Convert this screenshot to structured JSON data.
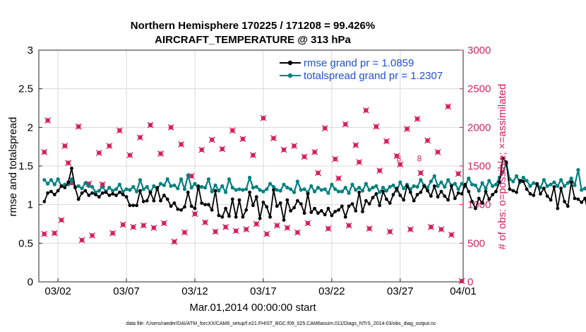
{
  "chart_data": {
    "type": "line",
    "title_line1": "Northern Hemisphere 170225 / 171208 = 99.426%",
    "title_line2": "AIRCRAFT_TEMPERATURE @ 313 hPa",
    "xlabel": "Mar.01,2014 00:00:00 start",
    "ylabel_left": "rmse and totalspread",
    "ylabel_right": "# of obs: o=possible; ×=assimilated",
    "footer": "data file: /Users/raeder/DAI/ATM_forcXX/CAM6_setup/f.e21.FHIST_BGC.f09_025.CAM6assim.011/Diags_NTrS_2014-03/obs_diag_output.nc",
    "xlim": [
      0.6,
      31.6
    ],
    "x_ticks": [
      {
        "x": 2,
        "label": "03/02"
      },
      {
        "x": 7,
        "label": "03/07"
      },
      {
        "x": 12,
        "label": "03/12"
      },
      {
        "x": 17,
        "label": "03/17"
      },
      {
        "x": 22,
        "label": "03/22"
      },
      {
        "x": 27,
        "label": "03/27"
      },
      {
        "x": 32,
        "label": "04/01"
      }
    ],
    "ylim_left": [
      0,
      3
    ],
    "yticks_left": [
      "0",
      "0.5",
      "1",
      "1.5",
      "2",
      "2.5",
      "3"
    ],
    "ylim_right": [
      0,
      3000
    ],
    "yticks_right": [
      "0",
      "500",
      "1000",
      "1500",
      "2000",
      "2500",
      "3000"
    ],
    "legend": {
      "position": "top-right",
      "entries": [
        {
          "name": "rmse",
          "label": "rmse grand pr = 1.0859"
        },
        {
          "name": "totalspread",
          "label": "totalspread grand pr = 1.2307"
        }
      ]
    },
    "colors": {
      "rmse": "#000000",
      "totalspread": "#00807f",
      "obs": "#d6215d",
      "legend_text": "#1f4fd6",
      "grid": "#d8d8d8"
    },
    "x_start": 1,
    "x_step": 0.25,
    "rmse": [
      1.04,
      1.15,
      1.17,
      1.13,
      1.18,
      1.24,
      1.22,
      1.29,
      1.47,
      1.22,
      1.07,
      1.15,
      1.18,
      1.12,
      1.15,
      1.13,
      1.1,
      1.15,
      1.16,
      1.12,
      1.14,
      1.12,
      1.16,
      1.13,
      1.1,
      0.99,
      0.99,
      0.99,
      1.18,
      1.04,
      1.05,
      1.16,
      1.05,
      1.22,
      1.05,
      1.12,
      1.07,
      0.98,
      1.02,
      0.94,
      0.93,
      0.97,
      1.16,
      0.98,
      0.95,
      1.24,
      1.02,
      1.0,
      1.0,
      0.93,
      1.18,
      0.86,
      0.84,
      0.95,
      0.85,
      1.07,
      0.84,
      1.06,
      0.84,
      0.93,
      1.16,
      0.99,
      1.1,
      0.82,
      1.03,
      0.97,
      0.84,
      1.19,
      0.98,
      1.02,
      0.8,
      1.06,
      0.92,
      0.96,
      1.05,
      1.01,
      0.89,
      1.14,
      0.9,
      0.95,
      0.89,
      0.92,
      0.87,
      0.95,
      0.86,
      0.91,
      0.93,
      0.98,
      0.84,
      0.98,
      1.01,
      0.92,
      1.16,
      0.91,
      1.05,
      1.01,
      1.09,
      1.14,
      0.99,
      1.17,
      1.07,
      1.02,
      1.13,
      1.21,
      1.12,
      1.06,
      1.24,
      1.16,
      1.05,
      1.13,
      1.16,
      1.24,
      1.18,
      1.11,
      1.24,
      1.1,
      1.17,
      1.11,
      1.06,
      1.24,
      1.08,
      1.15,
      1.14,
      1.26,
      1.17,
      1.04,
      0.95,
      1.08,
      1.02,
      1.17,
      1.07,
      1.13,
      1.17,
      1.29,
      1.6,
      1.55,
      1.2,
      1.18,
      1.16,
      1.31,
      1.3,
      1.2,
      1.14,
      1.12,
      1.27,
      1.14,
      1.21,
      1.11,
      1.06,
      1.23,
      0.95,
      1.21,
      1.04,
      0.98,
      1.29,
      1.08,
      1.07,
      1.03,
      1.08,
      0.89,
      1.14,
      0.96
    ],
    "totalspread": [
      1.32,
      1.27,
      1.32,
      1.26,
      1.33,
      1.24,
      1.26,
      1.26,
      1.33,
      1.23,
      1.24,
      1.21,
      1.28,
      1.24,
      1.23,
      1.16,
      1.18,
      1.23,
      1.17,
      1.22,
      1.18,
      1.2,
      1.26,
      1.17,
      1.2,
      1.19,
      1.23,
      1.17,
      1.32,
      1.2,
      1.23,
      1.16,
      1.24,
      1.2,
      1.27,
      1.25,
      1.33,
      1.24,
      1.25,
      1.21,
      1.33,
      1.2,
      1.38,
      1.22,
      1.27,
      1.21,
      1.23,
      1.22,
      1.33,
      1.17,
      1.25,
      1.18,
      1.24,
      1.16,
      1.33,
      1.22,
      1.19,
      1.2,
      1.19,
      1.2,
      1.35,
      1.22,
      1.23,
      1.19,
      1.17,
      1.2,
      1.27,
      1.23,
      1.19,
      1.18,
      1.26,
      1.22,
      1.2,
      1.16,
      1.3,
      1.19,
      1.2,
      1.16,
      1.24,
      1.17,
      1.22,
      1.19,
      1.2,
      1.15,
      1.26,
      1.2,
      1.17,
      1.17,
      1.22,
      1.15,
      1.26,
      1.19,
      1.22,
      1.18,
      1.27,
      1.19,
      1.22,
      1.24,
      1.16,
      1.22,
      1.18,
      1.23,
      1.25,
      1.18,
      1.29,
      1.21,
      1.26,
      1.2,
      1.24,
      1.23,
      1.32,
      1.25,
      1.22,
      1.3,
      1.37,
      1.24,
      1.29,
      1.23,
      1.32,
      1.25,
      1.27,
      1.2,
      1.27,
      1.24,
      1.34,
      1.26,
      1.25,
      1.18,
      1.28,
      1.21,
      1.31,
      1.24,
      1.26,
      1.35,
      1.42,
      1.53,
      1.33,
      1.3,
      1.37,
      1.29,
      1.35,
      1.31,
      1.24,
      1.28,
      1.26,
      1.22,
      1.32,
      1.24,
      1.26,
      1.29,
      1.24,
      1.32,
      1.24,
      1.28,
      1.34,
      1.25,
      1.45,
      1.19,
      1.21,
      1.15,
      1.24,
      1.12
    ],
    "obs_high": [
      [
        1,
        1680
      ],
      [
        1.25,
        2090
      ],
      [
        2.5,
        1760
      ],
      [
        2.75,
        1540
      ],
      [
        3.5,
        2010
      ],
      [
        4.25,
        1270
      ],
      [
        5,
        1670
      ],
      [
        5.75,
        1760
      ],
      [
        6.5,
        1960
      ],
      [
        7.25,
        1640
      ],
      [
        8,
        1870
      ],
      [
        8.75,
        2030
      ],
      [
        9.5,
        1660
      ],
      [
        10.25,
        2000
      ],
      [
        11,
        1780
      ],
      [
        11.75,
        1370
      ],
      [
        12.5,
        1710
      ],
      [
        13.25,
        1840
      ],
      [
        14,
        1720
      ],
      [
        14.75,
        1960
      ],
      [
        15.5,
        1850
      ],
      [
        16.25,
        1640
      ],
      [
        17,
        2120
      ],
      [
        17.75,
        1860
      ],
      [
        18.5,
        1710
      ],
      [
        19.25,
        1760
      ],
      [
        20,
        1620
      ],
      [
        20.75,
        1680
      ],
      [
        21.5,
        1990
      ],
      [
        22.25,
        1590
      ],
      [
        23,
        2040
      ],
      [
        23.75,
        1770
      ],
      [
        24.5,
        2220
      ],
      [
        25.25,
        2010
      ],
      [
        26,
        1820
      ],
      [
        26.75,
        1630
      ],
      [
        27.5,
        1980
      ],
      [
        28.25,
        2110
      ],
      [
        29,
        1830
      ],
      [
        29.75,
        1680
      ],
      [
        30.5,
        2270
      ]
    ],
    "obs_low": [
      [
        1,
        620
      ],
      [
        1.75,
        630
      ],
      [
        2.25,
        800
      ],
      [
        3,
        1280
      ],
      [
        3.75,
        540
      ],
      [
        4.5,
        600
      ],
      [
        5.25,
        1260
      ],
      [
        6,
        630
      ],
      [
        6.75,
        740
      ],
      [
        7.5,
        710
      ],
      [
        8.25,
        730
      ],
      [
        9,
        700
      ],
      [
        9.75,
        760
      ],
      [
        10.5,
        520
      ],
      [
        11.25,
        640
      ],
      [
        12,
        880
      ],
      [
        12.75,
        770
      ],
      [
        13.5,
        650
      ],
      [
        14.25,
        710
      ],
      [
        15,
        660
      ],
      [
        15.75,
        680
      ],
      [
        16.5,
        750
      ],
      [
        17.25,
        620
      ],
      [
        18,
        730
      ],
      [
        18.75,
        700
      ],
      [
        19.5,
        640
      ],
      [
        20.25,
        760
      ],
      [
        21,
        1410
      ],
      [
        21.75,
        690
      ],
      [
        22.5,
        1340
      ],
      [
        23.25,
        730
      ],
      [
        24,
        1550
      ],
      [
        24.75,
        690
      ],
      [
        25.5,
        1440
      ],
      [
        26.25,
        650
      ],
      [
        27,
        1520
      ],
      [
        27.75,
        680
      ],
      [
        28.5,
        1410
      ],
      [
        29.25,
        710
      ],
      [
        30,
        680
      ],
      [
        30.75,
        610
      ],
      [
        31.25,
        1400
      ],
      [
        31.5,
        10
      ]
    ],
    "obs_annotations": [
      {
        "x": 26.9,
        "label": "8"
      },
      {
        "x": 28.4,
        "label": "8"
      }
    ]
  }
}
